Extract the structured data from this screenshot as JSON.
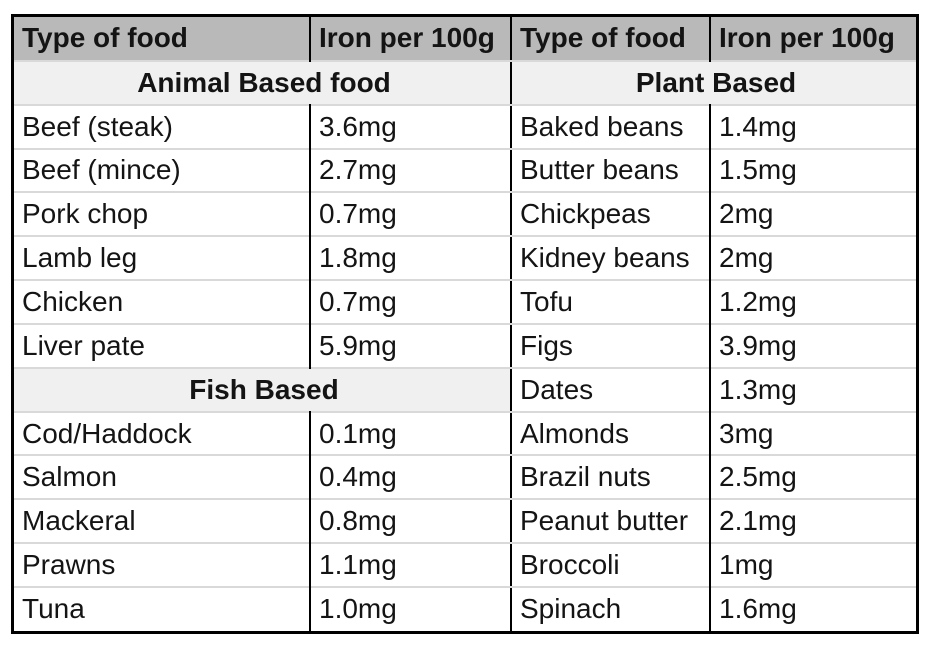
{
  "chart_data": {
    "type": "table",
    "columns": [
      "Type of food",
      "Iron per 100g"
    ],
    "groups": [
      {
        "group": "Animal Based food",
        "rows": [
          {
            "food": "Beef (steak)",
            "iron_mg": 3.6,
            "value_label": "3.6mg"
          },
          {
            "food": "Beef (mince)",
            "iron_mg": 2.7,
            "value_label": "2.7mg"
          },
          {
            "food": "Pork chop",
            "iron_mg": 0.7,
            "value_label": "0.7mg"
          },
          {
            "food": "Lamb leg",
            "iron_mg": 1.8,
            "value_label": "1.8mg"
          },
          {
            "food": "Chicken",
            "iron_mg": 0.7,
            "value_label": "0.7mg"
          },
          {
            "food": "Liver pate",
            "iron_mg": 5.9,
            "value_label": "5.9mg"
          }
        ]
      },
      {
        "group": "Fish Based",
        "rows": [
          {
            "food": "Cod/Haddock",
            "iron_mg": 0.1,
            "value_label": "0.1mg"
          },
          {
            "food": "Salmon",
            "iron_mg": 0.4,
            "value_label": "0.4mg"
          },
          {
            "food": "Mackeral",
            "iron_mg": 0.8,
            "value_label": "0.8mg"
          },
          {
            "food": "Prawns",
            "iron_mg": 1.1,
            "value_label": "1.1mg"
          },
          {
            "food": "Tuna",
            "iron_mg": 1.0,
            "value_label": "1.0mg"
          }
        ]
      },
      {
        "group": "Plant Based",
        "rows": [
          {
            "food": "Baked beans",
            "iron_mg": 1.4,
            "value_label": "1.4mg"
          },
          {
            "food": "Butter beans",
            "iron_mg": 1.5,
            "value_label": "1.5mg"
          },
          {
            "food": "Chickpeas",
            "iron_mg": 2,
            "value_label": "2mg"
          },
          {
            "food": "Kidney beans",
            "iron_mg": 2,
            "value_label": "2mg"
          },
          {
            "food": "Tofu",
            "iron_mg": 1.2,
            "value_label": "1.2mg"
          },
          {
            "food": "Figs",
            "iron_mg": 3.9,
            "value_label": "3.9mg"
          },
          {
            "food": "Dates",
            "iron_mg": 1.3,
            "value_label": "1.3mg"
          },
          {
            "food": "Almonds",
            "iron_mg": 3,
            "value_label": "3mg"
          },
          {
            "food": "Brazil nuts",
            "iron_mg": 2.5,
            "value_label": "2.5mg"
          },
          {
            "food": "Peanut butter",
            "iron_mg": 2.1,
            "value_label": "2.1mg"
          },
          {
            "food": "Broccoli",
            "iron_mg": 1,
            "value_label": "1mg"
          },
          {
            "food": "Spinach",
            "iron_mg": 1.6,
            "value_label": "1.6mg"
          }
        ]
      }
    ],
    "layout_halves": [
      [
        0,
        1
      ],
      [
        2
      ]
    ],
    "colors": {
      "header_bg": "#b9b9b9",
      "section_bg": "#f0f0f0",
      "row_divider": "#d9d9d9",
      "border": "#000000",
      "text": "#141414"
    }
  }
}
